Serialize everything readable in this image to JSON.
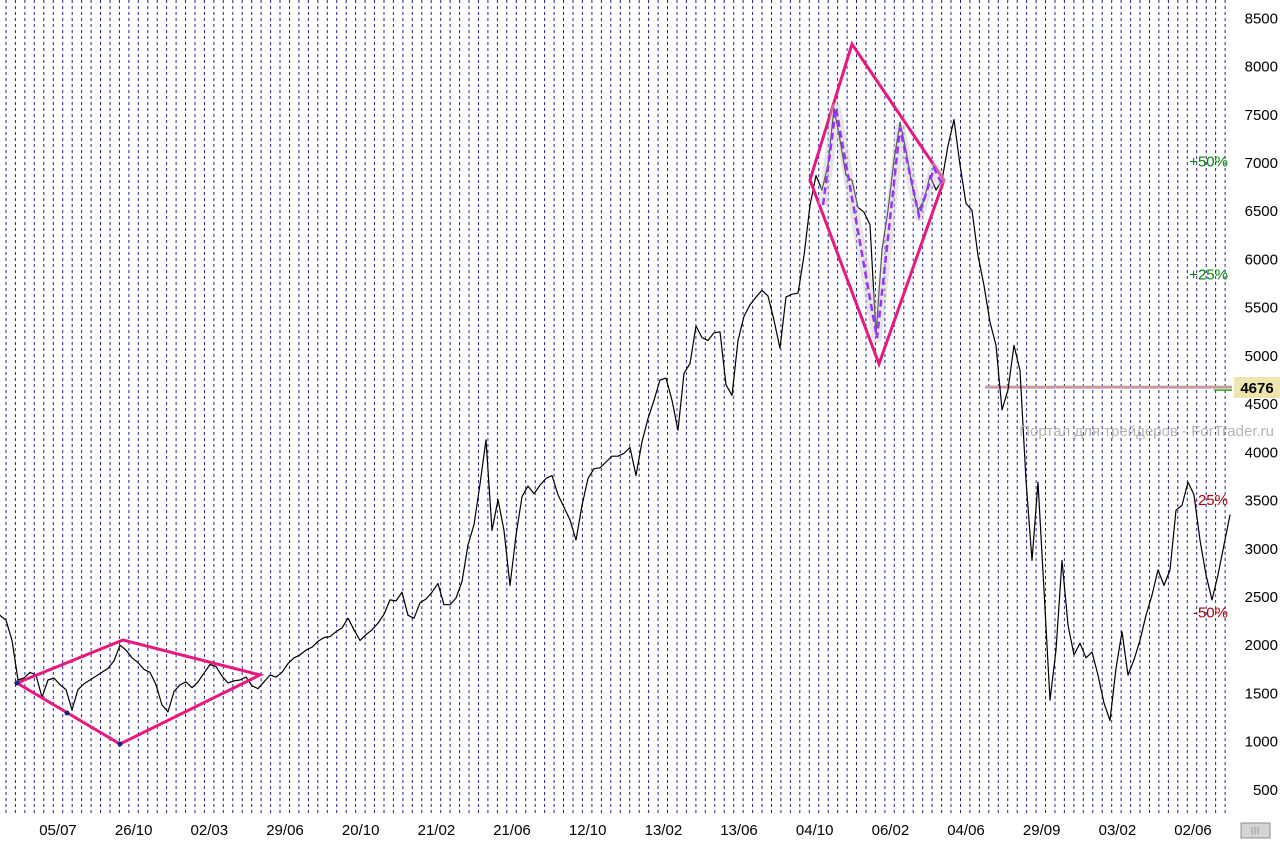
{
  "chart_data": {
    "type": "line",
    "y_axis_position": "right",
    "ylim": [
      240,
      8690
    ],
    "y_ticks": [
      8500,
      8000,
      7500,
      7000,
      6500,
      6000,
      5500,
      5000,
      4500,
      4000,
      3500,
      3000,
      2500,
      2000,
      1500,
      1000,
      500
    ],
    "x_tick_labels": [
      "05/07",
      "26/10",
      "02/03",
      "29/06",
      "20/10",
      "21/02",
      "21/06",
      "12/10",
      "13/02",
      "13/06",
      "04/10",
      "06/02",
      "04/06",
      "29/09",
      "03/02",
      "02/06"
    ],
    "grid": {
      "vertical": true,
      "horizontal": false
    },
    "series": [
      {
        "values": [
          2310,
          2260,
          2050,
          1640,
          1660,
          1720,
          1690,
          1460,
          1640,
          1660,
          1590,
          1540,
          1330,
          1540,
          1600,
          1640,
          1680,
          1720,
          1760,
          1840,
          2000,
          1950,
          1870,
          1820,
          1750,
          1720,
          1590,
          1380,
          1310,
          1520,
          1590,
          1620,
          1560,
          1620,
          1710,
          1800,
          1780,
          1680,
          1610,
          1630,
          1640,
          1670,
          1580,
          1550,
          1620,
          1690,
          1670,
          1720,
          1810,
          1870,
          1900,
          1950,
          1980,
          2040,
          2080,
          2090,
          2140,
          2180,
          2280,
          2160,
          2050,
          2110,
          2160,
          2230,
          2320,
          2470,
          2460,
          2550,
          2310,
          2280,
          2440,
          2480,
          2550,
          2640,
          2420,
          2420,
          2490,
          2660,
          3040,
          3250,
          3670,
          4130,
          3190,
          3510,
          3190,
          2620,
          3140,
          3540,
          3650,
          3570,
          3660,
          3730,
          3760,
          3560,
          3430,
          3300,
          3090,
          3450,
          3730,
          3830,
          3840,
          3900,
          3960,
          3960,
          3990,
          4050,
          3760,
          4110,
          4350,
          4540,
          4750,
          4770,
          4540,
          4230,
          4820,
          4920,
          5310,
          5190,
          5160,
          5240,
          5250,
          4700,
          4590,
          5160,
          5410,
          5530,
          5610,
          5680,
          5620,
          5370,
          5080,
          5610,
          5640,
          5650,
          6040,
          6560,
          6870,
          6720,
          6980,
          7570,
          7240,
          6870,
          6820,
          6540,
          6490,
          6360,
          5220,
          6100,
          6510,
          7030,
          7420,
          7130,
          6770,
          6510,
          6610,
          6870,
          6720,
          6820,
          7180,
          7450,
          6980,
          6580,
          6510,
          6040,
          5730,
          5350,
          5110,
          4440,
          4650,
          5110,
          4850,
          3710,
          2880,
          3690,
          2570,
          1430,
          1950,
          2880,
          2210,
          1900,
          2020,
          1870,
          1930,
          1690,
          1400,
          1220,
          1760,
          2140,
          1690,
          1850,
          2050,
          2310,
          2520,
          2780,
          2620,
          2780,
          3400,
          3450,
          3690,
          3560,
          3090,
          2730,
          2470,
          2730,
          3040,
          3350
        ]
      }
    ],
    "current_value": {
      "value": 4676,
      "label": "4676"
    },
    "percent_levels": [
      {
        "label": "+50%",
        "price": 7014,
        "color": "#008a00"
      },
      {
        "label": "+25%",
        "price": 5845,
        "color": "#008a00"
      },
      {
        "label": "-25%",
        "price": 3507,
        "color": "#b00000"
      },
      {
        "label": "-50%",
        "price": 2338,
        "color": "#b00000"
      }
    ],
    "watermark": "Портал для трейдеров - ForTrader.ru"
  },
  "colors": {
    "line": "#000000",
    "grid": "#1f1fa6",
    "pattern": "#e8187c",
    "wave": "#9b30ff",
    "wave_highlight": "#c8c8c8",
    "pattern_point": "#14208c",
    "level_line": "#c79b9b",
    "level_line_secondary": "#2aa02a",
    "value_box": "#ede5ad",
    "watermark": "#b4b4b4",
    "scrollbar": "#d4d4d4",
    "scrollbar_border": "#8c8c8c"
  }
}
